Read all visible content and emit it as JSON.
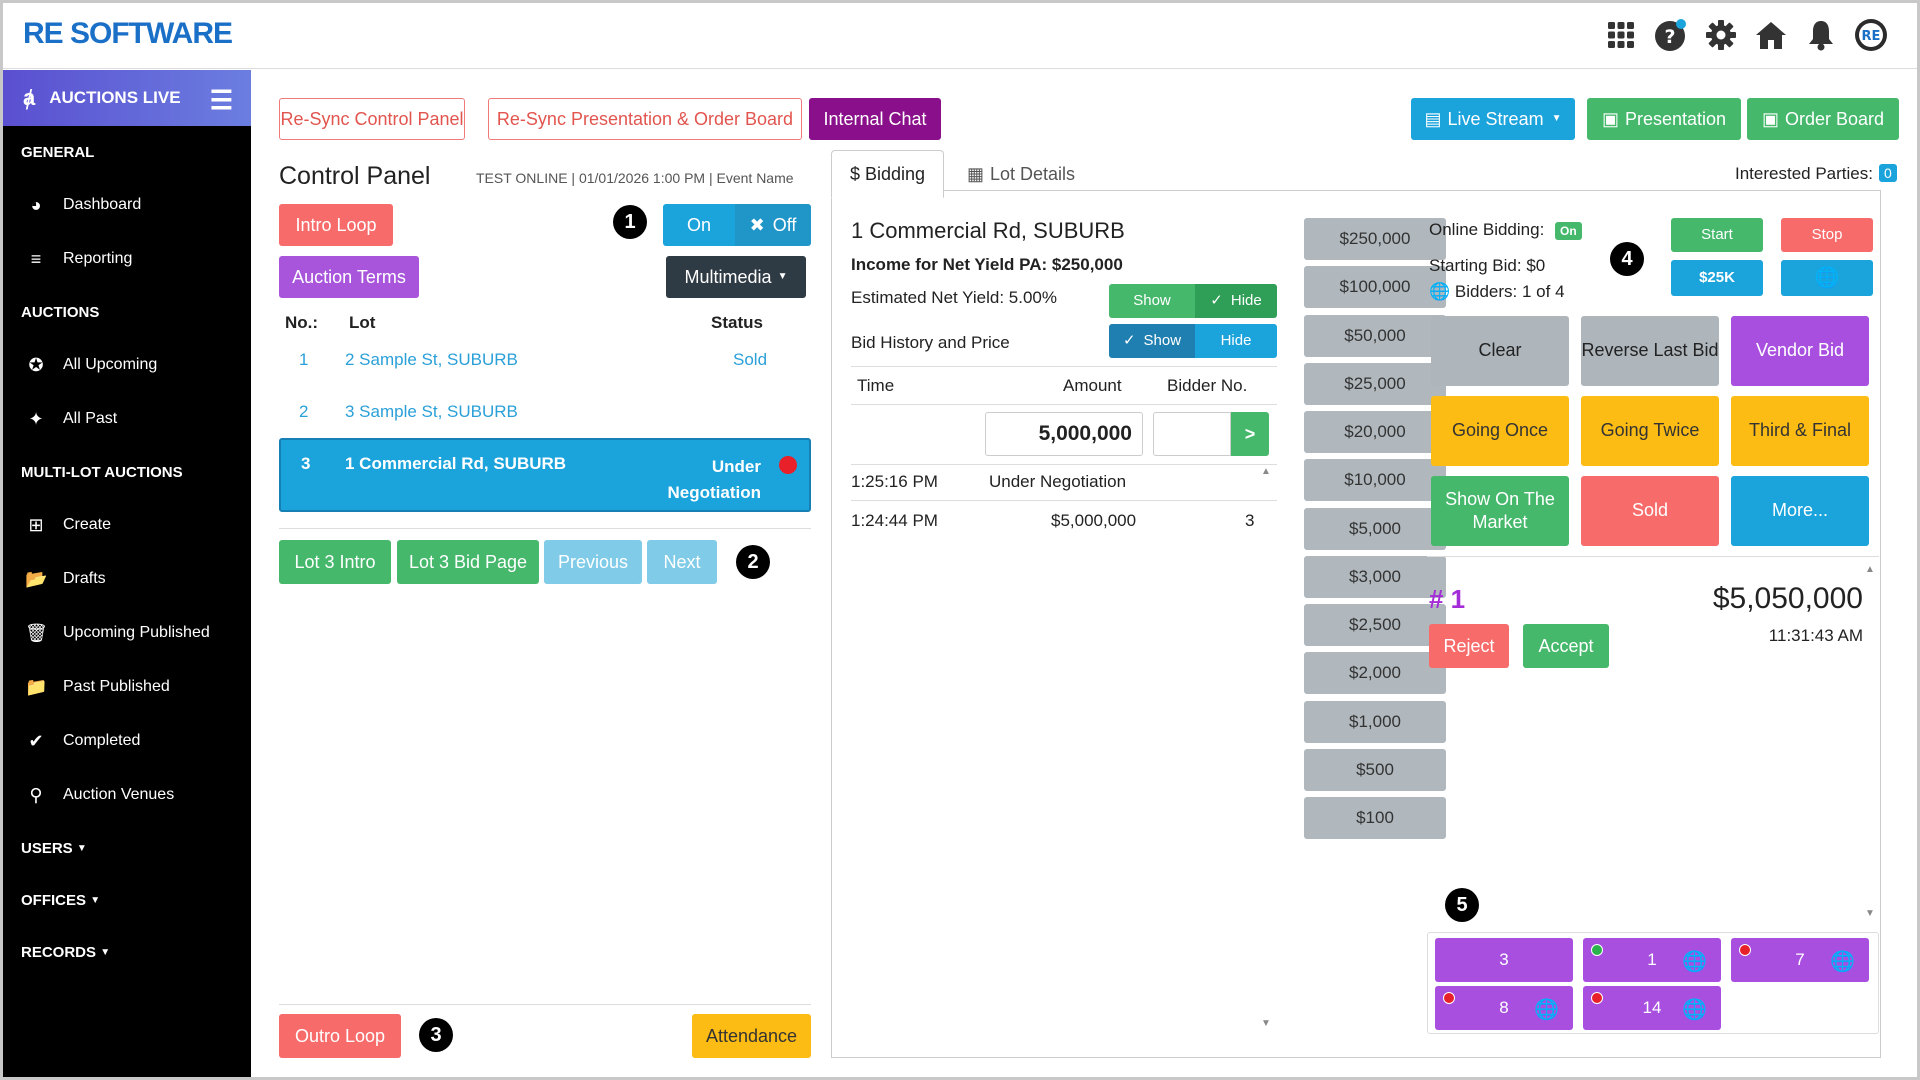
{
  "app": {
    "logo": "RE SOFTWARE"
  },
  "topbar": {
    "icons": [
      "apps-grid-icon",
      "help-icon",
      "settings-gear-icon",
      "home-icon",
      "bell-icon",
      "avatar"
    ]
  },
  "sidebar": {
    "title": "AUCTIONS LIVE",
    "sections": {
      "general": "GENERAL",
      "auctions": "AUCTIONS",
      "multilot": "MULTI-LOT AUCTIONS",
      "users": "USERS",
      "offices": "OFFICES",
      "records": "RECORDS"
    },
    "items": {
      "dashboard": "Dashboard",
      "reporting": "Reporting",
      "all_upcoming": "All Upcoming",
      "all_past": "All Past",
      "create": "Create",
      "drafts": "Drafts",
      "upcoming_published": "Upcoming Published",
      "past_published": "Past Published",
      "completed": "Completed",
      "venues": "Auction Venues"
    }
  },
  "toolbar": {
    "resync_control": "Re-Sync Control Panel",
    "resync_presentation": "Re-Sync Presentation & Order Board",
    "internal_chat": "Internal Chat",
    "live_stream": "Live Stream",
    "presentation": "Presentation",
    "order_board": "Order Board"
  },
  "control": {
    "title": "Control Panel",
    "event_online": "TEST ONLINE",
    "event_date": "01/01/2026 1:00 PM",
    "event_name": "Event Name",
    "intro_loop": "Intro Loop",
    "auction_terms": "Auction Terms",
    "toggle_on": "On",
    "toggle_off": "Off",
    "multimedia": "Multimedia",
    "col_no": "No.:",
    "col_lot": "Lot",
    "col_status": "Status",
    "lots": [
      {
        "no": "1",
        "lot": "2 Sample St, SUBURB",
        "status": "Sold"
      },
      {
        "no": "2",
        "lot": "3 Sample St, SUBURB",
        "status": ""
      },
      {
        "no": "3",
        "lot": "1 Commercial Rd, SUBURB",
        "status": "Under Negotiation"
      }
    ],
    "lot_intro": "Lot 3 Intro",
    "lot_bid_page": "Lot 3 Bid Page",
    "previous": "Previous",
    "next": "Next",
    "outro_loop": "Outro Loop",
    "attendance": "Attendance",
    "markers": [
      "1",
      "2",
      "3",
      "4",
      "5"
    ]
  },
  "tabs": {
    "bidding": "$ Bidding",
    "lot_details": "Lot Details",
    "interested_label": "Interested Parties:",
    "interested_count": "0"
  },
  "bidding": {
    "property": "1 Commercial Rd, SUBURB",
    "income": "Income for Net Yield PA: $250,000",
    "net_yield": "Estimated Net Yield: 5.00%",
    "show": "Show",
    "hide": "Hide",
    "bid_history_label": "Bid History and Price",
    "col_time": "Time",
    "col_amount": "Amount",
    "col_bidder": "Bidder No.",
    "amount_value": "5,000,000",
    "bidder_value": "",
    "go": ">",
    "history": [
      {
        "time": "1:25:16 PM",
        "amount": "Under Negotiation",
        "bidder": ""
      },
      {
        "time": "1:24:44 PM",
        "amount": "$5,000,000",
        "bidder": "3"
      }
    ]
  },
  "increments": [
    "$250,000",
    "$100,000",
    "$50,000",
    "$25,000",
    "$20,000",
    "$10,000",
    "$5,000",
    "$3,000",
    "$2,500",
    "$2,000",
    "$1,000",
    "$500",
    "$100"
  ],
  "online": {
    "label": "Online Bidding:",
    "badge": "On",
    "starting_bid": "Starting Bid: $0",
    "bidders": "Bidders: 1 of 4",
    "start": "Start",
    "stop": "Stop",
    "increment": "$25K"
  },
  "actions": {
    "clear": "Clear",
    "reverse_last_bid": "Reverse Last Bid",
    "vendor_bid": "Vendor Bid",
    "going_once": "Going Once",
    "going_twice": "Going Twice",
    "third_final": "Third & Final",
    "show_on_market": "Show On The Market",
    "sold": "Sold",
    "more": "More..."
  },
  "pending": {
    "bidder_no": "# 1",
    "amount": "$5,050,000",
    "time": "11:31:43 AM",
    "reject": "Reject",
    "accept": "Accept"
  },
  "bidders": [
    {
      "num": "3",
      "dot": "",
      "online": false
    },
    {
      "num": "1",
      "dot": "#2ab34a",
      "online": true
    },
    {
      "num": "7",
      "dot": "#e8202a",
      "online": true
    },
    {
      "num": "8",
      "dot": "#e8202a",
      "online": true
    },
    {
      "num": "14",
      "dot": "#e8202a",
      "online": true
    }
  ],
  "colors": {
    "accent": "#1ba3dc",
    "brand": "#1a6fc7",
    "danger": "#f76b6b",
    "success": "#45b86b",
    "purple": "#a855dc"
  }
}
